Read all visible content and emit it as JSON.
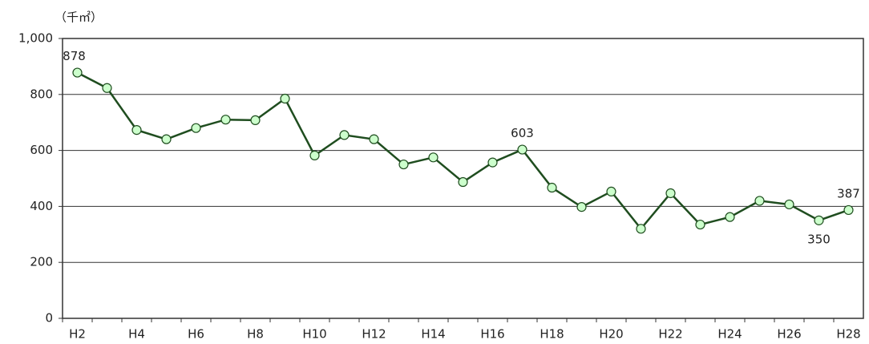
{
  "chart_data": {
    "type": "line",
    "unit_label": "（千㎡）",
    "categories": [
      "H2",
      null,
      "H4",
      null,
      "H6",
      null,
      "H8",
      null,
      "H10",
      null,
      "H12",
      null,
      "H14",
      null,
      "H16",
      null,
      "H18",
      null,
      "H20",
      null,
      "H22",
      null,
      "H24",
      null,
      "H26",
      null,
      "H28"
    ],
    "series": [
      {
        "color": "#1f4d1f",
        "marker_color": "#ccffcc",
        "values": [
          878,
          823,
          673,
          640,
          680,
          710,
          708,
          785,
          582,
          655,
          640,
          550,
          575,
          487,
          557,
          603,
          467,
          398,
          453,
          320,
          447,
          335,
          362,
          420,
          407,
          350,
          387
        ],
        "value_labels": [
          "878",
          null,
          null,
          null,
          null,
          null,
          null,
          null,
          null,
          null,
          null,
          null,
          null,
          null,
          null,
          "603",
          null,
          null,
          null,
          null,
          null,
          null,
          null,
          null,
          null,
          "350",
          "387"
        ]
      }
    ],
    "ylim": [
      0,
      1000
    ],
    "yticks": [
      0,
      200,
      400,
      600,
      800,
      {
        "value": 1000,
        "label": "1,000"
      }
    ],
    "grid": true
  }
}
